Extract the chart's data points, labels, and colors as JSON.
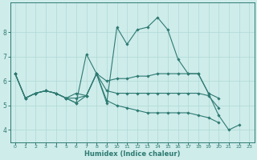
{
  "xlabel": "Humidex (Indice chaleur)",
  "ylabel": "",
  "background_color": "#ceecea",
  "grid_color": "#aed8d5",
  "line_color": "#2d7a72",
  "xlim": [
    -0.5,
    23.5
  ],
  "ylim": [
    3.5,
    9.2
  ],
  "xticks": [
    0,
    1,
    2,
    3,
    4,
    5,
    6,
    7,
    8,
    9,
    10,
    11,
    12,
    13,
    14,
    15,
    16,
    17,
    18,
    19,
    20,
    21,
    22,
    23
  ],
  "yticks": [
    4,
    5,
    6,
    7,
    8
  ],
  "lines": [
    {
      "x": [
        0,
        1,
        2,
        3,
        4,
        5,
        6,
        7,
        8,
        9,
        10,
        11,
        12,
        13,
        14,
        15,
        16,
        17,
        18,
        19,
        20,
        21,
        22
      ],
      "y": [
        6.3,
        5.3,
        5.5,
        5.6,
        5.5,
        5.3,
        5.1,
        7.1,
        6.3,
        5.1,
        8.2,
        7.5,
        8.1,
        8.2,
        8.6,
        8.1,
        6.9,
        6.3,
        6.3,
        5.5,
        4.6,
        4.0,
        4.2
      ]
    },
    {
      "x": [
        0,
        1,
        2,
        3,
        4,
        5,
        6,
        7,
        8,
        9,
        10,
        11,
        12,
        13,
        14,
        15,
        16,
        17,
        18,
        19,
        20
      ],
      "y": [
        6.3,
        5.3,
        5.5,
        5.6,
        5.5,
        5.3,
        5.5,
        5.4,
        6.3,
        6.0,
        6.1,
        6.1,
        6.2,
        6.2,
        6.3,
        6.3,
        6.3,
        6.3,
        6.3,
        5.5,
        5.3
      ]
    },
    {
      "x": [
        0,
        1,
        2,
        3,
        4,
        5,
        6,
        7,
        8,
        9,
        10,
        11,
        12,
        13,
        14,
        15,
        16,
        17,
        18,
        19,
        20
      ],
      "y": [
        6.3,
        5.3,
        5.5,
        5.6,
        5.5,
        5.3,
        5.1,
        5.4,
        6.3,
        5.2,
        5.0,
        4.9,
        4.8,
        4.7,
        4.7,
        4.7,
        4.7,
        4.7,
        4.6,
        4.5,
        4.3
      ]
    },
    {
      "x": [
        0,
        1,
        2,
        3,
        4,
        5,
        6,
        7,
        8,
        9,
        10,
        11,
        12,
        13,
        14,
        15,
        16,
        17,
        18,
        19,
        20
      ],
      "y": [
        6.3,
        5.3,
        5.5,
        5.6,
        5.5,
        5.3,
        5.3,
        5.4,
        6.3,
        5.6,
        5.5,
        5.5,
        5.5,
        5.5,
        5.5,
        5.5,
        5.5,
        5.5,
        5.5,
        5.4,
        4.9
      ]
    }
  ]
}
